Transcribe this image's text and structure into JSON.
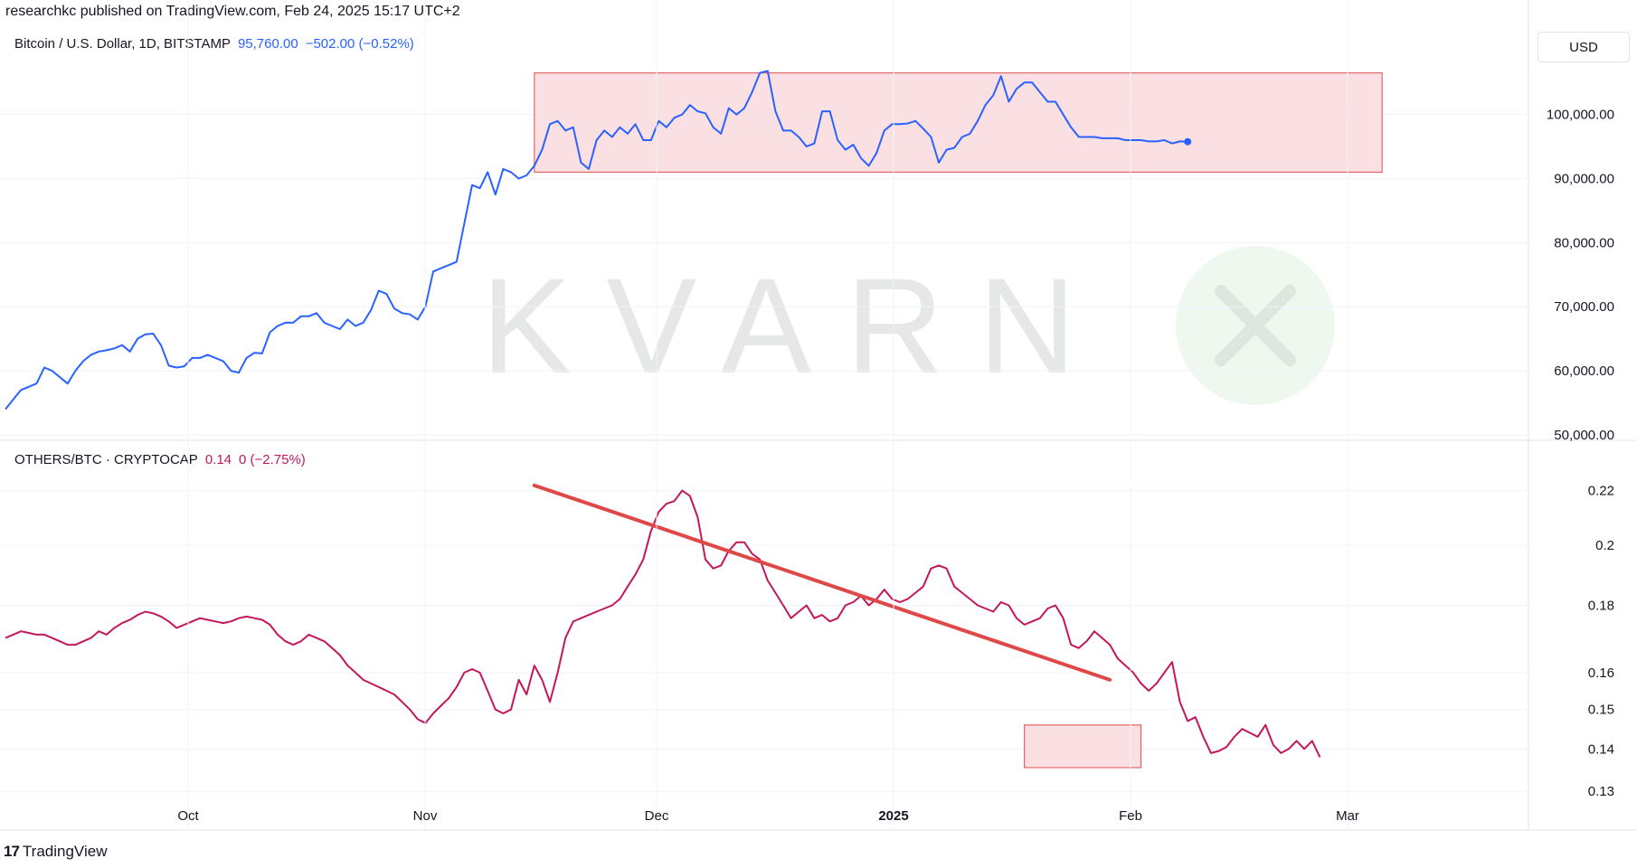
{
  "header": {
    "text": "researchkc published on TradingView.com, Feb 24, 2025 15:17 UTC+2"
  },
  "currency": "USD",
  "footer": {
    "brand": "TradingView"
  },
  "watermark": {
    "text": "KVARN"
  },
  "colors": {
    "btc": "#2962ff",
    "others": "#c2185b",
    "trend": "#e04848",
    "box_fill": "#f9dadd",
    "box_stroke": "#e06868",
    "grid": "#f0f3fa"
  },
  "chart_data": [
    {
      "type": "line",
      "legend": {
        "symbol": "Bitcoin / U.S. Dollar, 1D, BITSTAMP",
        "price": "95,760.00",
        "change": "−502.00 (−0.52%)"
      },
      "y_ticks": [
        50000,
        60000,
        70000,
        80000,
        90000,
        100000
      ],
      "y_tick_labels": [
        "50,000.00",
        "60,000.00",
        "70,000.00",
        "80,000.00",
        "90,000.00",
        "100,000.00"
      ],
      "ylim": [
        49000,
        108000
      ],
      "highlight_box": {
        "x_range": [
          68,
          177
        ],
        "y_range": [
          91000,
          106500
        ]
      },
      "series": [
        {
          "values": [
            54000,
            55500,
            57000,
            57500,
            58000,
            60500,
            60000,
            59000,
            58000,
            60000,
            61500,
            62500,
            63000,
            63200,
            63500,
            64000,
            63000,
            65000,
            65700,
            65800,
            64000,
            60800,
            60500,
            60700,
            62000,
            62000,
            62500,
            62000,
            61500,
            60000,
            59700,
            62000,
            62800,
            62700,
            66000,
            67000,
            67500,
            67500,
            68500,
            68500,
            69000,
            67500,
            67000,
            66500,
            68000,
            67000,
            67500,
            69500,
            72500,
            72000,
            69700,
            69000,
            68800,
            68000,
            70000,
            75500,
            76000,
            76500,
            77000,
            83000,
            89000,
            88500,
            91000,
            87500,
            91500,
            91000,
            90000,
            90500,
            92000,
            94500,
            98500,
            99000,
            97500,
            98000,
            92500,
            91500,
            96000,
            97500,
            96500,
            98000,
            97000,
            98500,
            96000,
            96000,
            99000,
            98000,
            99500,
            100000,
            101500,
            100500,
            100200,
            98000,
            97000,
            101000,
            100000,
            101000,
            103500,
            106500,
            106800,
            100500,
            97500,
            97500,
            96500,
            95000,
            95500,
            100500,
            100500,
            96000,
            94500,
            95300,
            93200,
            92000,
            94000,
            97500,
            98500,
            98500,
            98600,
            99000,
            97800,
            96500,
            92500,
            94500,
            94800,
            96500,
            97000,
            99000,
            101500,
            103000,
            106000,
            102000,
            104000,
            105000,
            105000,
            103500,
            102000,
            102000,
            100000,
            98000,
            96500,
            96500,
            96500,
            96300,
            96300,
            96300,
            96000,
            96000,
            96000,
            95800,
            95800,
            96000,
            95500,
            95800,
            95760
          ]
        }
      ]
    },
    {
      "type": "line",
      "legend": {
        "symbol": "OTHERS/BTC · CRYPTOCAP",
        "price": "0.14",
        "change": "0 (−2.75%)"
      },
      "y_ticks": [
        0.13,
        0.14,
        0.15,
        0.16,
        0.18,
        0.2,
        0.22
      ],
      "y_tick_labels": [
        "0.13",
        "0.14",
        "0.15",
        "0.16",
        "0.18",
        "0.2",
        "0.22"
      ],
      "ylim": [
        0.128,
        0.228
      ],
      "log_scale": true,
      "trend_line": {
        "x": [
          68,
          142
        ],
        "y": [
          0.222,
          0.158
        ]
      },
      "highlight_box": {
        "x_range": [
          131,
          146
        ],
        "y_range": [
          0.1355,
          0.146
        ]
      },
      "series": [
        {
          "values": [
            0.17,
            0.171,
            0.172,
            0.1715,
            0.171,
            0.171,
            0.17,
            0.169,
            0.168,
            0.168,
            0.169,
            0.17,
            0.172,
            0.171,
            0.173,
            0.1745,
            0.1755,
            0.177,
            0.178,
            0.1775,
            0.1765,
            0.175,
            0.173,
            0.174,
            0.175,
            0.176,
            0.1755,
            0.175,
            0.1745,
            0.175,
            0.176,
            0.1765,
            0.176,
            0.1755,
            0.174,
            0.171,
            0.169,
            0.168,
            0.169,
            0.171,
            0.17,
            0.169,
            0.167,
            0.165,
            0.162,
            0.16,
            0.158,
            0.157,
            0.156,
            0.155,
            0.154,
            0.152,
            0.15,
            0.1475,
            0.1465,
            0.149,
            0.151,
            0.153,
            0.156,
            0.16,
            0.161,
            0.16,
            0.155,
            0.15,
            0.149,
            0.15,
            0.158,
            0.154,
            0.162,
            0.158,
            0.152,
            0.16,
            0.17,
            0.175,
            0.176,
            0.177,
            0.178,
            0.179,
            0.18,
            0.182,
            0.186,
            0.19,
            0.195,
            0.205,
            0.212,
            0.215,
            0.216,
            0.22,
            0.218,
            0.21,
            0.195,
            0.192,
            0.193,
            0.198,
            0.201,
            0.201,
            0.197,
            0.195,
            0.188,
            0.184,
            0.18,
            0.176,
            0.178,
            0.18,
            0.176,
            0.177,
            0.175,
            0.176,
            0.18,
            0.181,
            0.183,
            0.18,
            0.182,
            0.185,
            0.182,
            0.181,
            0.182,
            0.184,
            0.186,
            0.192,
            0.193,
            0.192,
            0.186,
            0.184,
            0.182,
            0.18,
            0.179,
            0.178,
            0.181,
            0.18,
            0.176,
            0.174,
            0.175,
            0.176,
            0.179,
            0.18,
            0.176,
            0.168,
            0.167,
            0.169,
            0.172,
            0.17,
            0.168,
            0.164,
            0.162,
            0.16,
            0.157,
            0.155,
            0.157,
            0.16,
            0.163,
            0.152,
            0.147,
            0.148,
            0.143,
            0.139,
            0.1395,
            0.1405,
            0.143,
            0.145,
            0.144,
            0.143,
            0.146,
            0.141,
            0.139,
            0.14,
            0.142,
            0.14,
            0.142,
            0.138
          ]
        }
      ]
    }
  ],
  "x_axis": {
    "labels": [
      {
        "text": "Oct",
        "bold": false
      },
      {
        "text": "Nov",
        "bold": false
      },
      {
        "text": "Dec",
        "bold": false
      },
      {
        "text": "2025",
        "bold": true
      },
      {
        "text": "Feb",
        "bold": false
      },
      {
        "text": "Mar",
        "bold": false
      }
    ]
  }
}
